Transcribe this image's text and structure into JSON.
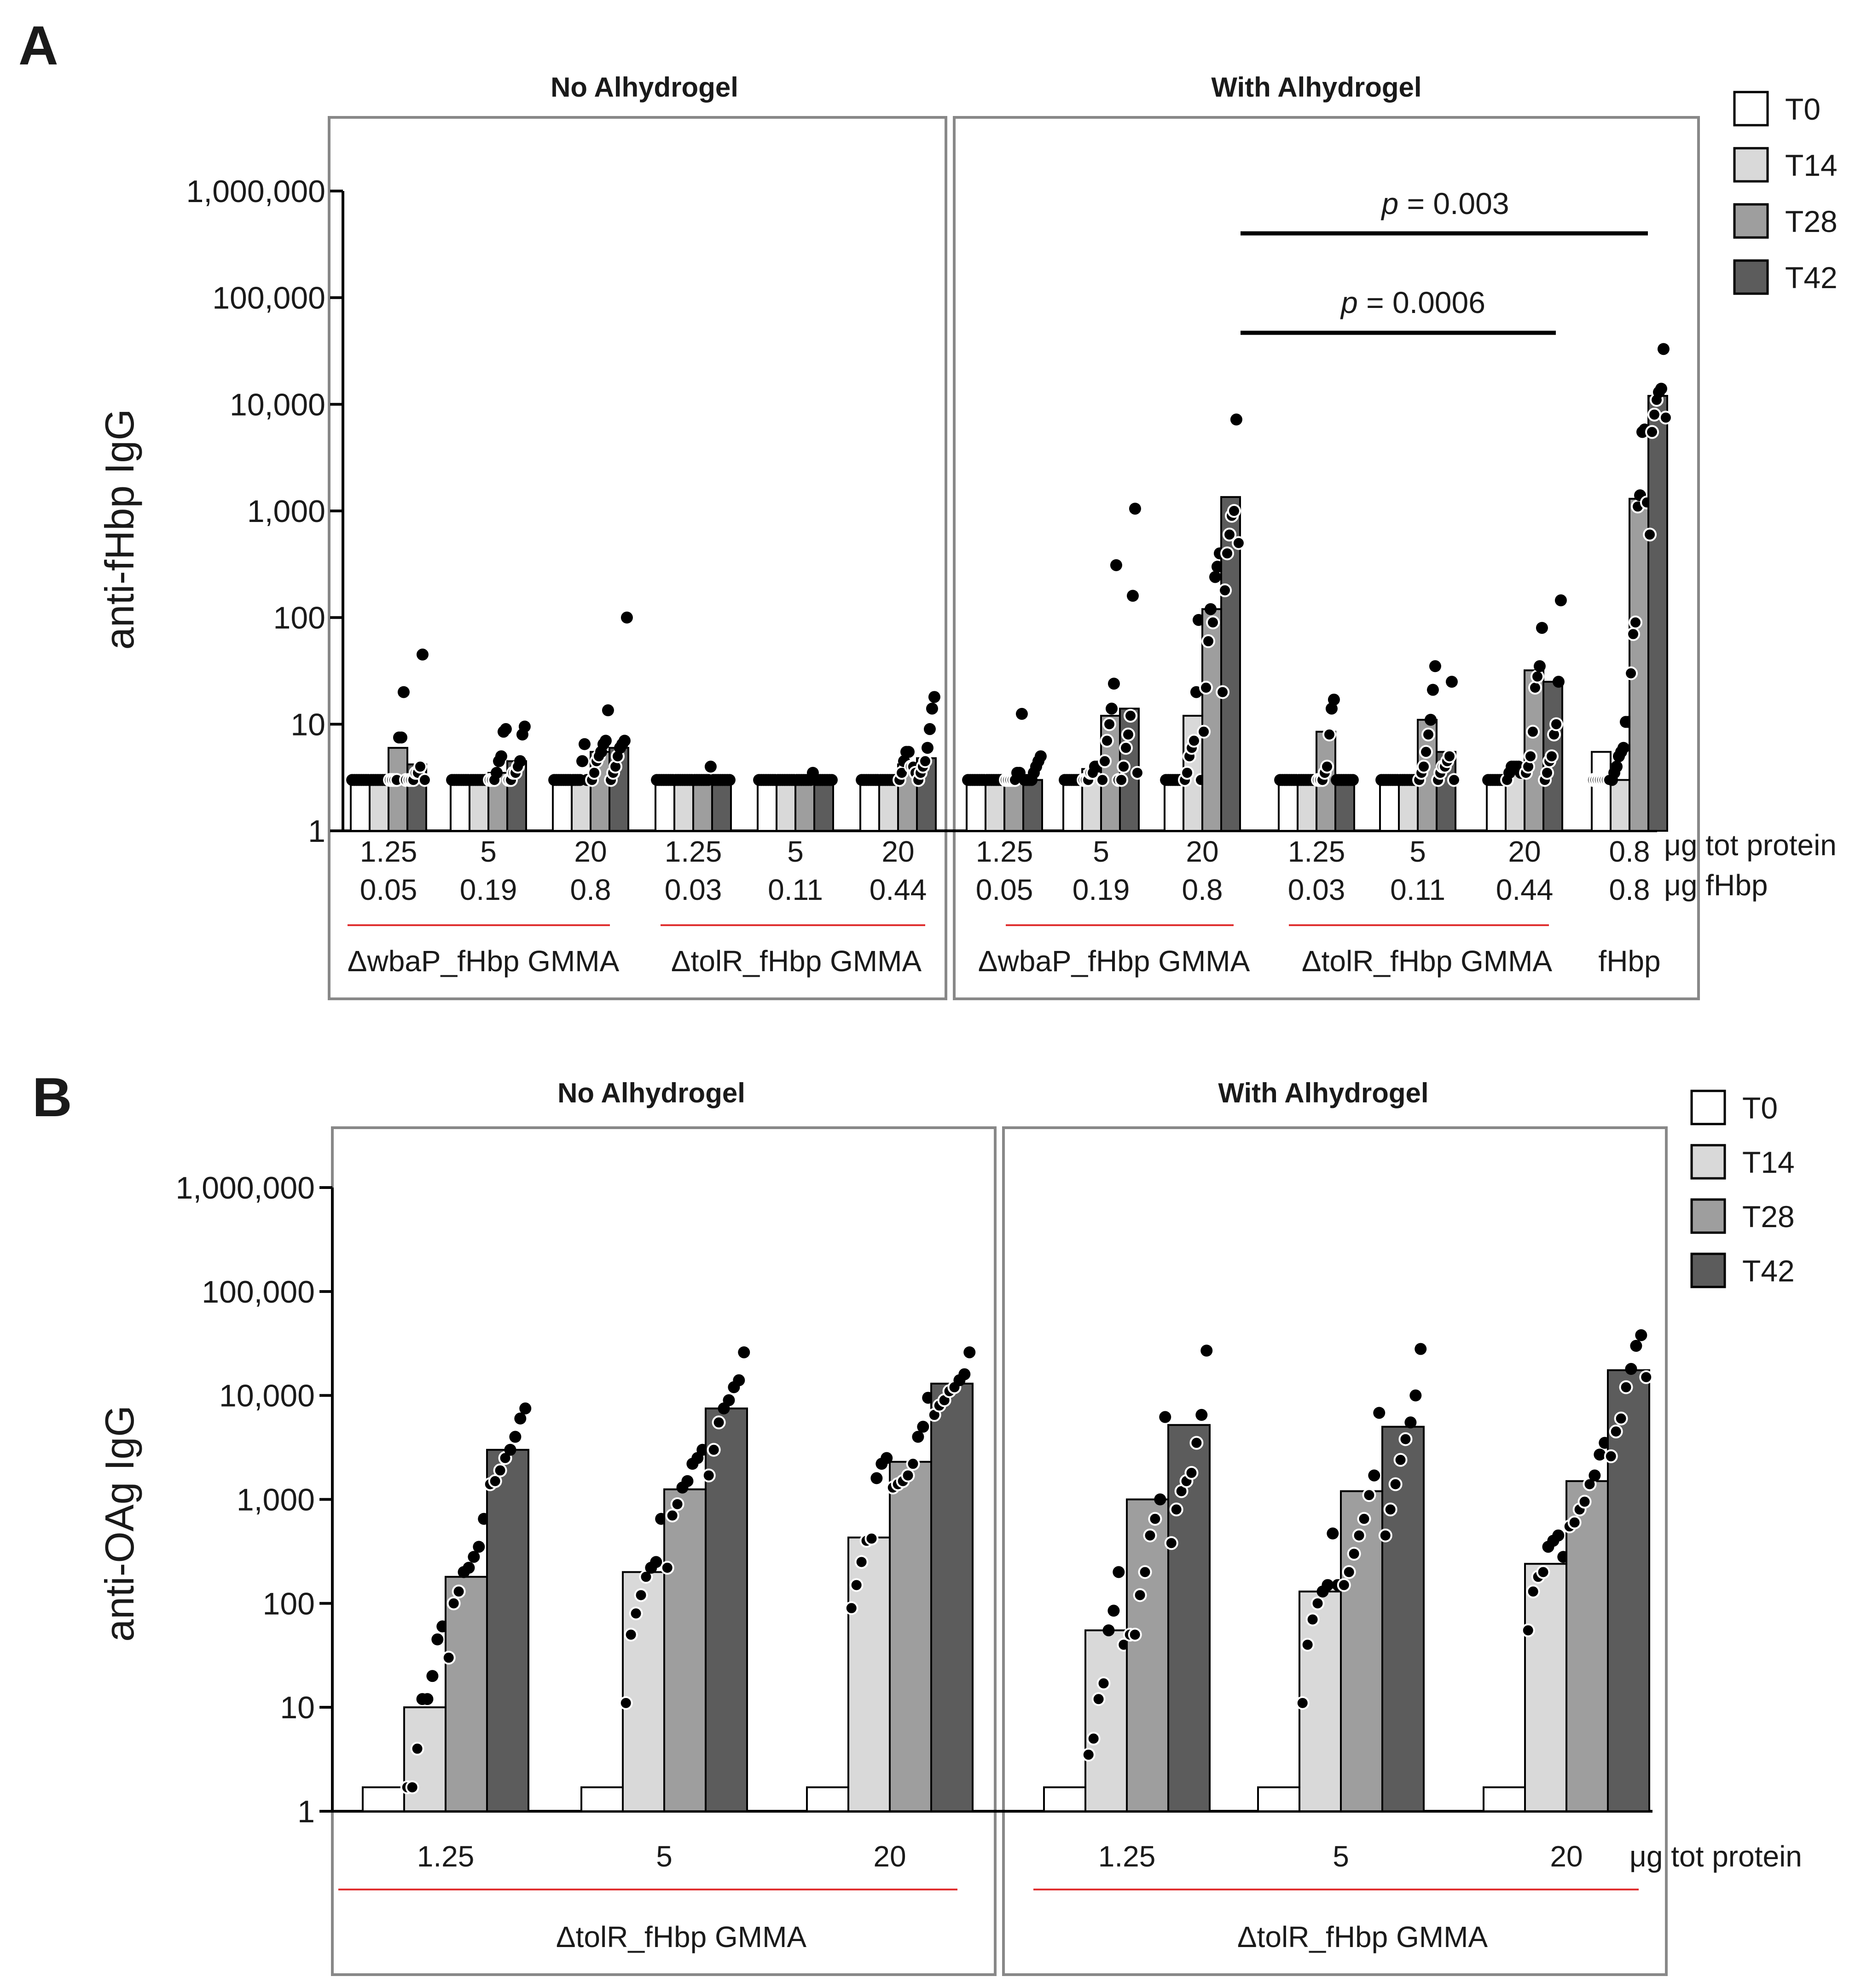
{
  "colors": {
    "T0": "#ffffff",
    "T14": "#d9d9d9",
    "T28": "#9e9e9e",
    "T42": "#5c5c5c",
    "points": "#000000",
    "underline": "#e03030",
    "frame": "#888888"
  },
  "legend": [
    "T0",
    "T14",
    "T28",
    "T42"
  ],
  "chart_data": [
    {
      "panel": "A",
      "type": "bar",
      "yscale": "log",
      "ylabel": "anti-fHbp IgG",
      "ylim": [
        1,
        1000000
      ],
      "yticks": [
        "1",
        "10",
        "100",
        "1,000",
        "10,000",
        "100,000",
        "1,000,000"
      ],
      "groups": [
        "No Alhydrogel",
        "With Alhydrogel"
      ],
      "row_labels": [
        "μg tot protein",
        "μg fHbp"
      ],
      "construct_labels": [
        "ΔwbaP_fHbp GMMA",
        "ΔtolR_fHbp GMMA",
        "ΔwbaP_fHbp GMMA",
        "ΔtolR_fHbp GMMA",
        "fHbp"
      ],
      "series": [
        "T0",
        "T14",
        "T28",
        "T42"
      ],
      "categories": [
        {
          "group": 0,
          "tot": "1.25",
          "fhbp": "0.05",
          "values": [
            3,
            3,
            6,
            4.2
          ],
          "points": [
            [
              3,
              3,
              3,
              3,
              3,
              3,
              3,
              3
            ],
            [
              3,
              3,
              3,
              3,
              3,
              3,
              3,
              3
            ],
            [
              3,
              3,
              3,
              3,
              7.5,
              7.5,
              20,
              3
            ],
            [
              3,
              3,
              3,
              3.5,
              3.5,
              4,
              45,
              3
            ]
          ]
        },
        {
          "group": 0,
          "tot": "5",
          "fhbp": "0.19",
          "values": [
            3,
            3,
            3.5,
            4.5
          ],
          "points": [
            [
              3,
              3,
              3,
              3,
              3,
              3,
              3,
              3
            ],
            [
              3,
              3,
              3,
              3,
              3,
              3,
              3,
              3
            ],
            [
              3,
              3,
              3,
              3.5,
              4.5,
              5,
              8.5,
              9
            ],
            [
              3,
              3,
              3.5,
              3.5,
              4,
              4.5,
              8,
              9.5
            ]
          ]
        },
        {
          "group": 0,
          "tot": "20",
          "fhbp": "0.8",
          "values": [
            3,
            3,
            5.5,
            6
          ],
          "points": [
            [
              3,
              3,
              3,
              3,
              3,
              3,
              3,
              3
            ],
            [
              3,
              3,
              3,
              3,
              4.5,
              6.5,
              3,
              3
            ],
            [
              3,
              3.5,
              4.5,
              5,
              5.5,
              6.5,
              7,
              13.5
            ],
            [
              3,
              3.5,
              4,
              5,
              6,
              6.5,
              7,
              100
            ]
          ]
        },
        {
          "group": 0,
          "tot": "1.25",
          "fhbp": "0.03",
          "values": [
            3,
            3,
            3,
            3
          ],
          "points": [
            [
              3,
              3,
              3,
              3,
              3,
              3,
              3,
              3
            ],
            [
              3,
              3,
              3,
              3,
              3,
              3,
              3,
              3
            ],
            [
              3,
              3,
              3,
              3,
              3,
              3,
              3,
              4
            ],
            [
              3,
              3,
              3,
              3,
              3,
              3,
              3,
              3
            ]
          ]
        },
        {
          "group": 0,
          "tot": "5",
          "fhbp": "0.11",
          "values": [
            3,
            3,
            3,
            3
          ],
          "points": [
            [
              3,
              3,
              3,
              3,
              3,
              3,
              3,
              3
            ],
            [
              3,
              3,
              3,
              3,
              3,
              3,
              3,
              3
            ],
            [
              3,
              3,
              3,
              3,
              3,
              3,
              3,
              3.5
            ],
            [
              3,
              3,
              3,
              3,
              3,
              3,
              3,
              3
            ]
          ]
        },
        {
          "group": 0,
          "tot": "20",
          "fhbp": "0.44",
          "values": [
            3,
            3,
            4.2,
            4.8
          ],
          "points": [
            [
              3,
              3,
              3,
              3,
              3,
              3,
              3,
              3
            ],
            [
              3,
              3,
              3,
              3,
              3,
              3,
              3,
              3
            ],
            [
              3,
              3.5,
              4.5,
              5.5,
              5.5,
              4,
              4,
              3.5
            ],
            [
              3,
              3.5,
              4,
              4.5,
              6,
              9,
              14,
              18
            ]
          ]
        },
        {
          "group": 1,
          "tot": "1.25",
          "fhbp": "0.05",
          "values": [
            3,
            3,
            3.2,
            3
          ],
          "points": [
            [
              3,
              3,
              3,
              3,
              3,
              3,
              3,
              3
            ],
            [
              3,
              3,
              3,
              3,
              3,
              3,
              3,
              3
            ],
            [
              3,
              3,
              3,
              3,
              3,
              3.5,
              3.5,
              12.5
            ],
            [
              3,
              3,
              3,
              3,
              3.5,
              4,
              4.5,
              5
            ]
          ]
        },
        {
          "group": 1,
          "tot": "5",
          "fhbp": "0.19",
          "values": [
            3,
            3.8,
            12,
            14
          ],
          "points": [
            [
              3,
              3,
              3,
              3,
              3,
              3,
              3,
              3
            ],
            [
              3,
              3,
              3,
              3.5,
              3.5,
              4,
              4,
              4
            ],
            [
              3,
              4.5,
              7,
              10,
              14,
              24,
              310,
              3
            ],
            [
              3,
              4,
              6,
              8,
              12,
              160,
              1050,
              3.5
            ]
          ]
        },
        {
          "group": 1,
          "tot": "20",
          "fhbp": "0.8",
          "values": [
            3,
            12,
            120,
            1350
          ],
          "points": [
            [
              3,
              3,
              3,
              3,
              3,
              3,
              3,
              3
            ],
            [
              3,
              3.5,
              5,
              6,
              7,
              20,
              95,
              3
            ],
            [
              8.5,
              22,
              60,
              120,
              90,
              240,
              300,
              400
            ],
            [
              20,
              180,
              400,
              600,
              900,
              1000,
              7200,
              500
            ]
          ]
        },
        {
          "group": 1,
          "tot": "1.25",
          "fhbp": "0.03",
          "values": [
            3,
            3,
            8.5,
            3
          ],
          "points": [
            [
              3,
              3,
              3,
              3,
              3,
              3,
              3,
              3
            ],
            [
              3,
              3,
              3,
              3,
              3,
              3,
              3,
              3
            ],
            [
              3,
              3,
              3,
              3.5,
              4,
              8,
              14,
              17
            ],
            [
              3,
              3,
              3,
              3,
              3,
              3,
              3,
              3
            ]
          ]
        },
        {
          "group": 1,
          "tot": "5",
          "fhbp": "0.11",
          "values": [
            3,
            3,
            11,
            5.5
          ],
          "points": [
            [
              3,
              3,
              3,
              3,
              3,
              3,
              3,
              3
            ],
            [
              3,
              3,
              3,
              3,
              3,
              3,
              3,
              3
            ],
            [
              3,
              3.5,
              4,
              5.5,
              8,
              11,
              21,
              35
            ],
            [
              3,
              3.5,
              4,
              4,
              4.5,
              5,
              25,
              3
            ]
          ]
        },
        {
          "group": 1,
          "tot": "20",
          "fhbp": "0.44",
          "values": [
            3,
            3.5,
            32,
            25
          ],
          "points": [
            [
              3,
              3,
              3,
              3,
              3,
              3,
              3,
              3
            ],
            [
              3,
              3.5,
              4,
              4,
              4,
              4,
              3.5,
              3.5
            ],
            [
              3.5,
              4,
              5,
              8.5,
              22,
              28,
              35,
              80
            ],
            [
              3,
              3.5,
              4.5,
              5,
              8,
              10,
              25,
              145
            ]
          ]
        },
        {
          "group": 1,
          "tot": "0.8",
          "fhbp": "0.8",
          "values": [
            5.5,
            3,
            1300,
            12000
          ],
          "points": [
            [
              3,
              3,
              3,
              3,
              3,
              3,
              3,
              3
            ],
            [
              3,
              3.5,
              4,
              5,
              5.5,
              6,
              10.5,
              10.5
            ],
            [
              30,
              70,
              90,
              1100,
              1400,
              5500,
              5800,
              1200
            ],
            [
              600,
              5500,
              8000,
              11000,
              13000,
              14000,
              33000,
              7500
            ]
          ]
        }
      ],
      "comparisons": [
        {
          "label": "p = 0.003",
          "p_text": "p",
          "rest": " = 0.003"
        },
        {
          "label": "p = 0.0006",
          "p_text": "p",
          "rest": " = 0.0006"
        }
      ]
    },
    {
      "panel": "B",
      "type": "bar",
      "yscale": "log",
      "ylabel": "anti-OAg IgG",
      "ylim": [
        1,
        1000000
      ],
      "yticks": [
        "1",
        "10",
        "100",
        "1,000",
        "10,000",
        "100,000",
        "1,000,000"
      ],
      "groups": [
        "No Alhydrogel",
        "With Alhydrogel"
      ],
      "row_labels": [
        "μg tot protein"
      ],
      "construct_labels": [
        "ΔtolR_fHbp GMMA",
        "ΔtolR_fHbp GMMA"
      ],
      "series": [
        "T0",
        "T14",
        "T28",
        "T42"
      ],
      "categories": [
        {
          "group": 0,
          "tot": "1.25",
          "values": [
            1.7,
            10,
            180,
            3000
          ],
          "points": [
            [],
            [
              1.7,
              1.7,
              4,
              12,
              12,
              20,
              45,
              60
            ],
            [
              30,
              100,
              130,
              200,
              220,
              280,
              350,
              650
            ],
            [
              1400,
              1500,
              1900,
              2500,
              3000,
              4000,
              6000,
              7500
            ]
          ]
        },
        {
          "group": 0,
          "tot": "5",
          "values": [
            1.7,
            200,
            1250,
            7500
          ],
          "points": [
            [],
            [
              11,
              50,
              80,
              120,
              180,
              220,
              250,
              650
            ],
            [
              220,
              700,
              900,
              1300,
              1500,
              2200,
              2500,
              3000
            ],
            [
              1700,
              3000,
              5500,
              7500,
              9000,
              12000,
              14000,
              26000
            ]
          ]
        },
        {
          "group": 0,
          "tot": "20",
          "values": [
            1.7,
            430,
            2300,
            13000
          ],
          "points": [
            [],
            [
              90,
              150,
              250,
              400,
              420,
              1600,
              2200,
              2500
            ],
            [
              1300,
              1400,
              1500,
              1700,
              2200,
              4000,
              5000,
              9500
            ],
            [
              6500,
              8000,
              9000,
              11000,
              12000,
              14000,
              16000,
              26000
            ]
          ]
        },
        {
          "group": 1,
          "tot": "1.25",
          "values": [
            1.7,
            55,
            1000,
            5200
          ],
          "points": [
            [],
            [
              3.5,
              5,
              12,
              17,
              55,
              85,
              200,
              40
            ],
            [
              50,
              50,
              120,
              200,
              450,
              650,
              1000,
              6200
            ],
            [
              380,
              800,
              1200,
              1500,
              1800,
              3500,
              6500,
              27000
            ]
          ]
        },
        {
          "group": 1,
          "tot": "5",
          "values": [
            1.7,
            130,
            1200,
            5000
          ],
          "points": [
            [],
            [
              11,
              40,
              70,
              100,
              130,
              150,
              470,
              150
            ],
            [
              150,
              200,
              300,
              450,
              650,
              1100,
              1700,
              6800
            ],
            [
              450,
              800,
              1400,
              2400,
              3800,
              5500,
              10000,
              28000
            ]
          ]
        },
        {
          "group": 1,
          "tot": "20",
          "values": [
            1.7,
            240,
            1500,
            17500
          ],
          "points": [
            [],
            [
              55,
              130,
              180,
              200,
              350,
              400,
              450,
              280
            ],
            [
              550,
              600,
              800,
              950,
              1400,
              1700,
              2700,
              3500
            ],
            [
              2600,
              4500,
              6000,
              12000,
              18000,
              30000,
              38000,
              15000
            ]
          ]
        }
      ]
    }
  ]
}
